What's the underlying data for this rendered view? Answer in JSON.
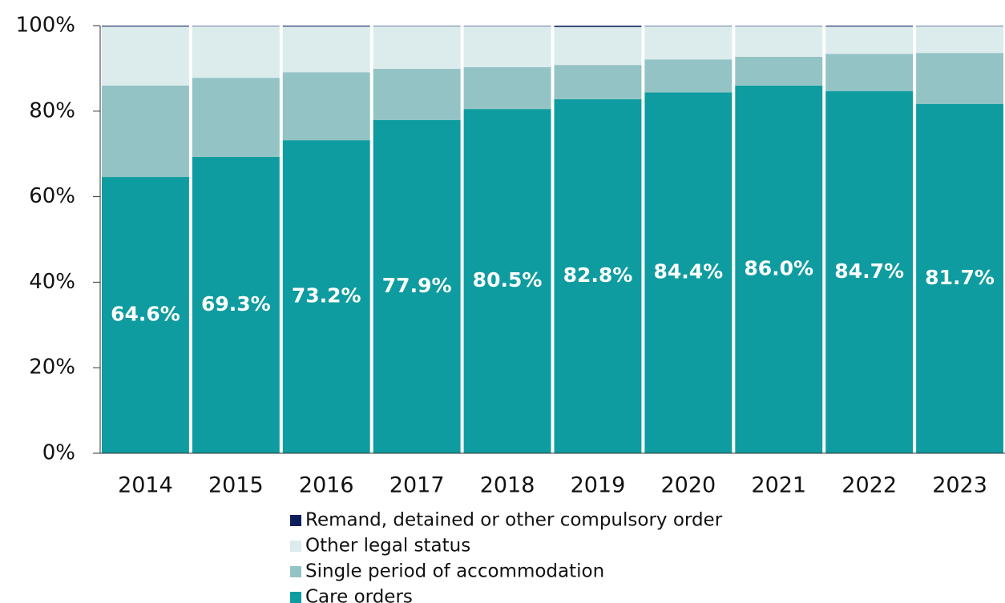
{
  "chart_data": {
    "type": "stacked_bar",
    "categories": [
      "2014",
      "2015",
      "2016",
      "2017",
      "2018",
      "2019",
      "2020",
      "2021",
      "2022",
      "2023"
    ],
    "series": [
      {
        "name": "Care orders",
        "color": "#0e9ca0",
        "values": [
          64.6,
          69.3,
          73.2,
          77.9,
          80.5,
          82.8,
          84.4,
          86.0,
          84.7,
          81.7
        ],
        "value_labels": [
          "64.6%",
          "69.3%",
          "73.2%",
          "77.9%",
          "80.5%",
          "82.8%",
          "84.4%",
          "86.0%",
          "84.7%",
          "81.7%"
        ]
      },
      {
        "name": "Single period of accommodation",
        "color": "#93c3c5",
        "values": [
          21.4,
          18.5,
          15.9,
          12.0,
          9.8,
          8.0,
          7.7,
          6.7,
          8.7,
          11.9
        ]
      },
      {
        "name": "Other legal status",
        "color": "#dcebec",
        "values": [
          13.8,
          12.1,
          10.7,
          10.0,
          9.6,
          8.9,
          7.8,
          7.2,
          6.4,
          6.3
        ]
      },
      {
        "name": "Remand, detained or other compulsory order",
        "color": "#0d1e5c",
        "values": [
          0.2,
          0.1,
          0.2,
          0.1,
          0.1,
          0.3,
          0.1,
          0.1,
          0.2,
          0.1
        ]
      }
    ],
    "ylim": [
      0,
      100
    ],
    "yticks": [
      {
        "value": 0,
        "label": "0%"
      },
      {
        "value": 20,
        "label": "20%"
      },
      {
        "value": 40,
        "label": "40%"
      },
      {
        "value": 60,
        "label": "60%"
      },
      {
        "value": 80,
        "label": "80%"
      },
      {
        "value": 100,
        "label": "100%"
      }
    ],
    "grid": false
  }
}
